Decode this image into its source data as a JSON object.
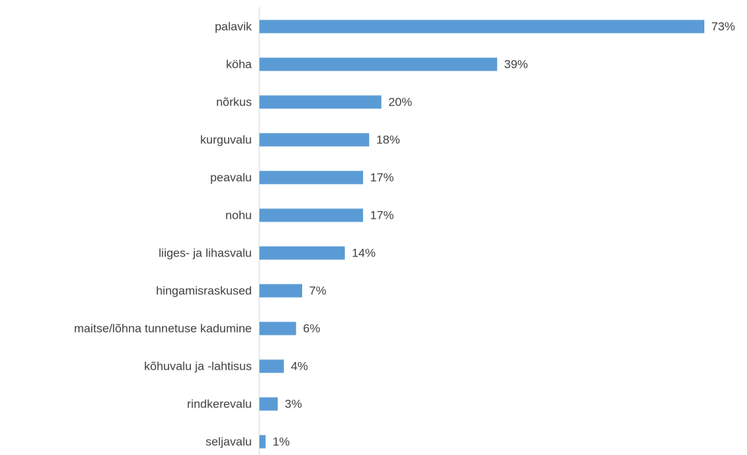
{
  "chart_data": {
    "type": "bar",
    "orientation": "horizontal",
    "categories": [
      "palavik",
      "köha",
      "nõrkus",
      "kurguvalu",
      "peavalu",
      "nohu",
      "liiges- ja lihasvalu",
      "hingamisraskused",
      "maitse/lõhna tunnetuse kadumine",
      "kõhuvalu ja -lahtisus",
      "rindkerevalu",
      "seljavalu"
    ],
    "values": [
      73,
      39,
      20,
      18,
      17,
      17,
      14,
      7,
      6,
      4,
      3,
      1
    ],
    "value_labels": [
      "73%",
      "39%",
      "20%",
      "18%",
      "17%",
      "17%",
      "14%",
      "7%",
      "6%",
      "4%",
      "3%",
      "1%"
    ],
    "color": "#5b9bd5"
  }
}
